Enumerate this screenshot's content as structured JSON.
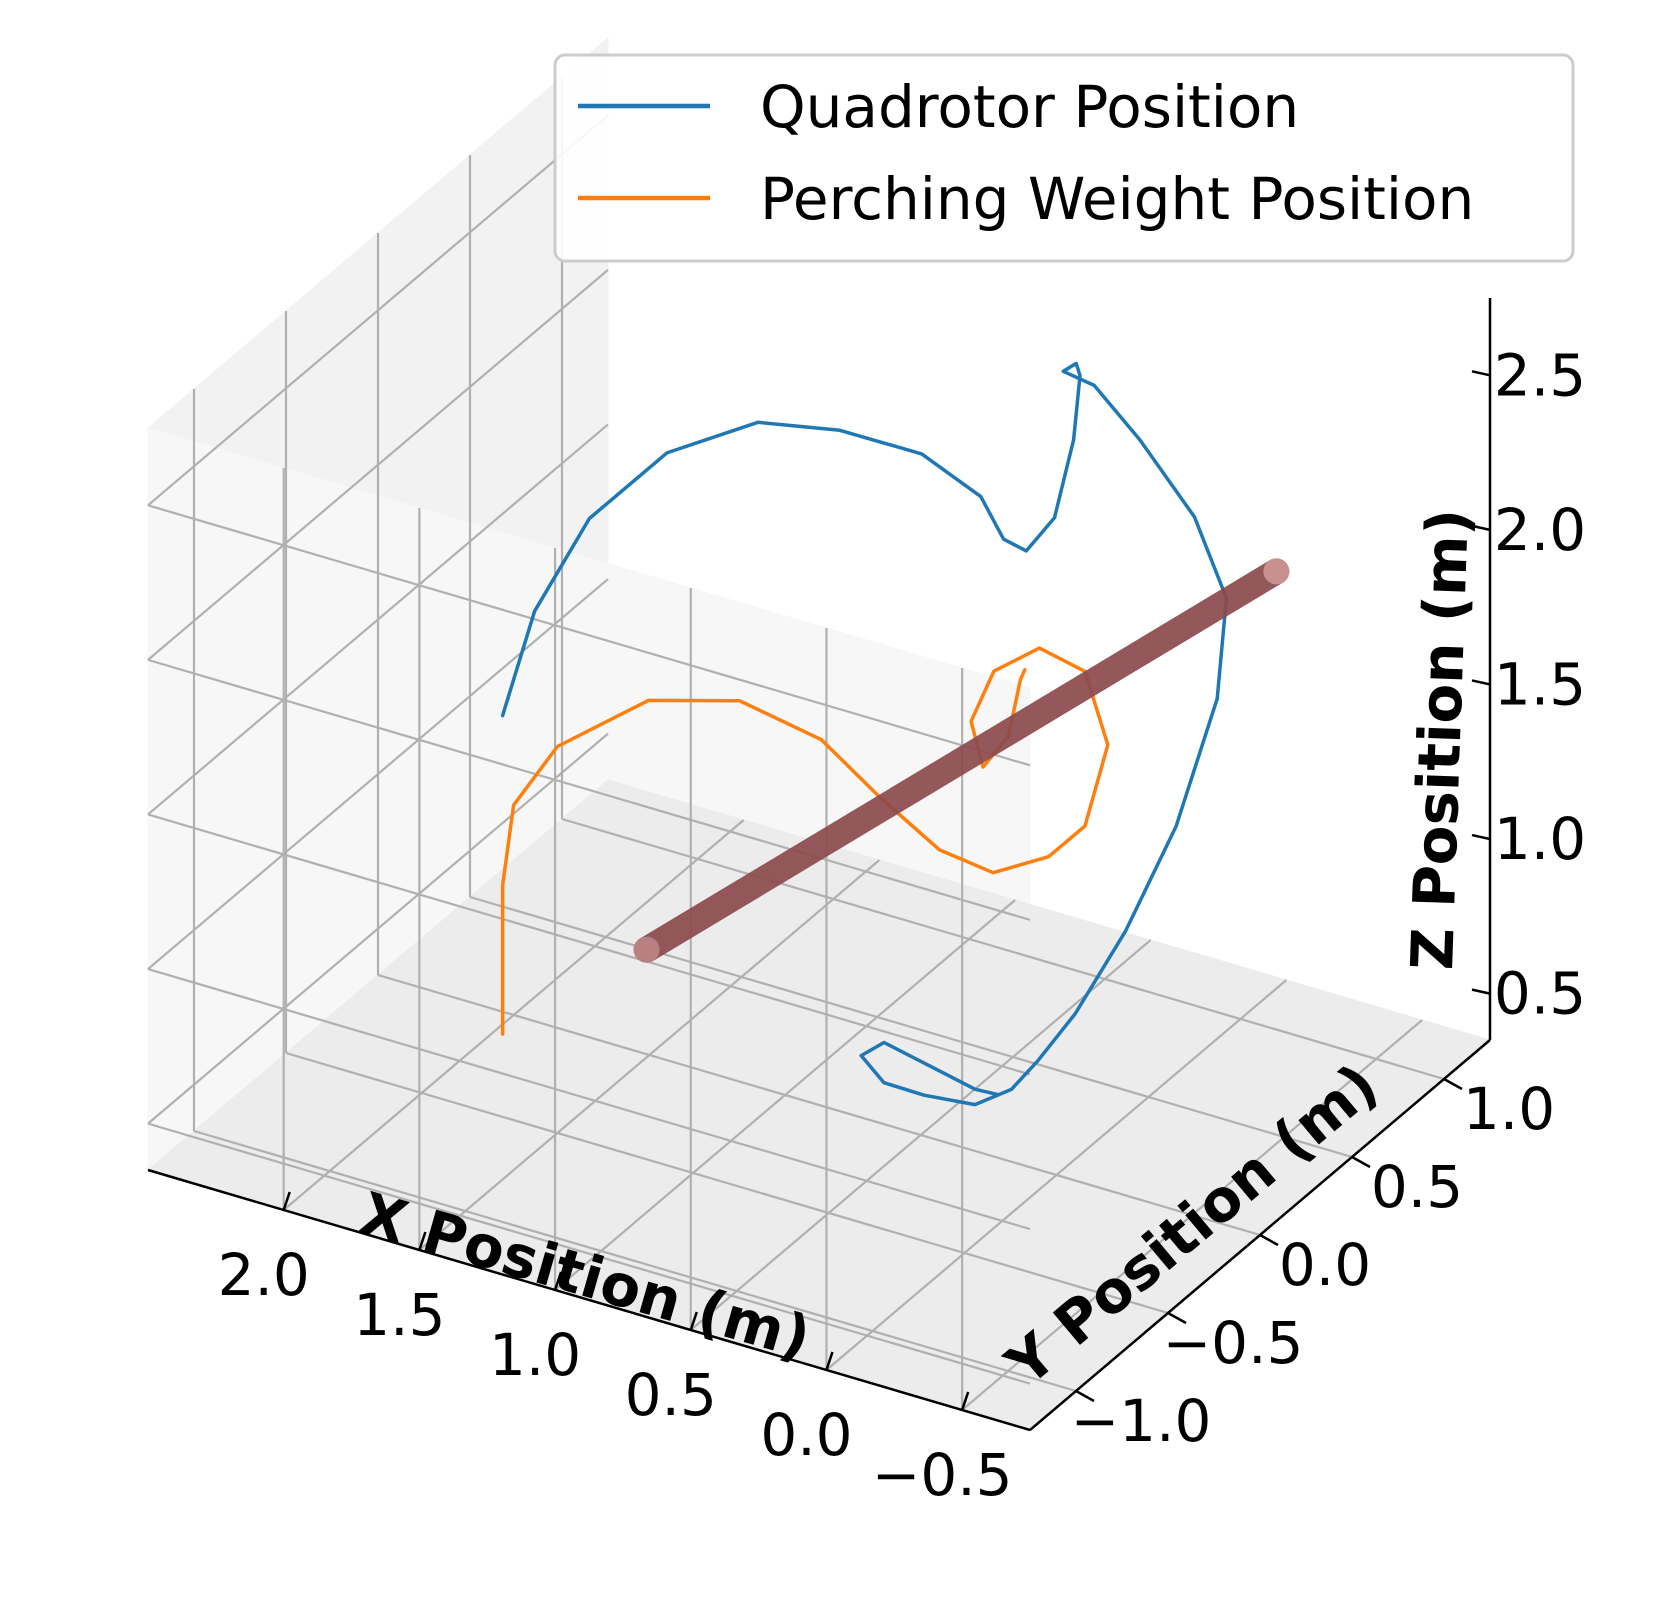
{
  "chart_data": {
    "type": "line",
    "projection": "3d",
    "title": "",
    "xlabel": "X Position (m)",
    "ylabel": "Y Position (m)",
    "zlabel": "Z Position (m)",
    "xlim": [
      -0.75,
      2.5
    ],
    "ylim": [
      -1.25,
      1.25
    ],
    "zlim": [
      0.35,
      2.75
    ],
    "x_ticks": [
      2.0,
      1.5,
      1.0,
      0.5,
      0.0,
      -0.5
    ],
    "x_tick_labels": [
      "2.0",
      "1.5",
      "1.0",
      "0.5",
      "0.0",
      "−0.5"
    ],
    "y_ticks": [
      -1.0,
      -0.5,
      0.0,
      0.5,
      1.0
    ],
    "y_tick_labels": [
      "−1.0",
      "−0.5",
      "0.0",
      "0.5",
      "1.0"
    ],
    "z_ticks": [
      0.5,
      1.0,
      1.5,
      2.0,
      2.5
    ],
    "z_tick_labels": [
      "0.5",
      "1.0",
      "1.5",
      "2.0",
      "2.5"
    ],
    "grid": true,
    "legend": {
      "position": "top-right",
      "entries": [
        {
          "label": "Quadrotor Position",
          "color": "#1f77b4"
        },
        {
          "label": "Perching Weight Position",
          "color": "#ff7f0e"
        }
      ]
    },
    "series": [
      {
        "name": "Quadrotor Position",
        "color": "#1f77b4",
        "points": [
          [
            1.6,
            -0.65,
            1.75
          ],
          [
            1.55,
            -0.55,
            2.05
          ],
          [
            1.45,
            -0.4,
            2.3
          ],
          [
            1.3,
            -0.2,
            2.45
          ],
          [
            1.1,
            0.0,
            2.5
          ],
          [
            0.9,
            0.15,
            2.45
          ],
          [
            0.7,
            0.3,
            2.35
          ],
          [
            0.55,
            0.4,
            2.2
          ],
          [
            0.5,
            0.45,
            2.05
          ],
          [
            0.45,
            0.5,
            2.0
          ],
          [
            0.38,
            0.55,
            2.1
          ],
          [
            0.33,
            0.58,
            2.35
          ],
          [
            0.32,
            0.6,
            2.55
          ],
          [
            0.3,
            0.55,
            2.62
          ],
          [
            0.28,
            0.45,
            2.65
          ],
          [
            0.2,
            0.5,
            2.6
          ],
          [
            0.1,
            0.6,
            2.4
          ],
          [
            0.0,
            0.75,
            2.1
          ],
          [
            -0.05,
            0.85,
            1.8
          ],
          [
            -0.05,
            0.8,
            1.5
          ],
          [
            0.0,
            0.65,
            1.15
          ],
          [
            0.05,
            0.45,
            0.9
          ],
          [
            0.1,
            0.25,
            0.72
          ],
          [
            0.15,
            0.12,
            0.62
          ],
          [
            0.2,
            0.05,
            0.55
          ],
          [
            0.3,
            0.0,
            0.5
          ],
          [
            0.42,
            -0.1,
            0.55
          ],
          [
            0.5,
            -0.2,
            0.62
          ],
          [
            0.55,
            -0.25,
            0.72
          ],
          [
            0.5,
            -0.2,
            0.75
          ],
          [
            0.4,
            -0.1,
            0.65
          ],
          [
            0.3,
            0.0,
            0.55
          ],
          [
            0.25,
            0.05,
            0.52
          ]
        ]
      },
      {
        "name": "Perching Weight Position",
        "color": "#ff7f0e",
        "points": [
          [
            1.6,
            -0.65,
            0.72
          ],
          [
            1.6,
            -0.65,
            0.95
          ],
          [
            1.6,
            -0.65,
            1.2
          ],
          [
            1.58,
            -0.62,
            1.45
          ],
          [
            1.5,
            -0.5,
            1.6
          ],
          [
            1.3,
            -0.3,
            1.7
          ],
          [
            1.1,
            -0.1,
            1.65
          ],
          [
            0.9,
            0.05,
            1.5
          ],
          [
            0.75,
            0.15,
            1.3
          ],
          [
            0.6,
            0.25,
            1.12
          ],
          [
            0.45,
            0.32,
            1.05
          ],
          [
            0.3,
            0.4,
            1.1
          ],
          [
            0.2,
            0.45,
            1.2
          ],
          [
            0.15,
            0.5,
            1.45
          ],
          [
            0.2,
            0.45,
            1.7
          ],
          [
            0.3,
            0.35,
            1.8
          ],
          [
            0.4,
            0.25,
            1.75
          ],
          [
            0.45,
            0.2,
            1.6
          ],
          [
            0.42,
            0.22,
            1.45
          ],
          [
            0.38,
            0.3,
            1.52
          ],
          [
            0.35,
            0.32,
            1.7
          ],
          [
            0.32,
            0.3,
            1.75
          ]
        ]
      }
    ],
    "perch": {
      "color": "#8b4a4c",
      "start": [
        0.9,
        -0.9,
        1.3
      ],
      "end": [
        -0.2,
        0.9,
        1.9
      ]
    }
  }
}
